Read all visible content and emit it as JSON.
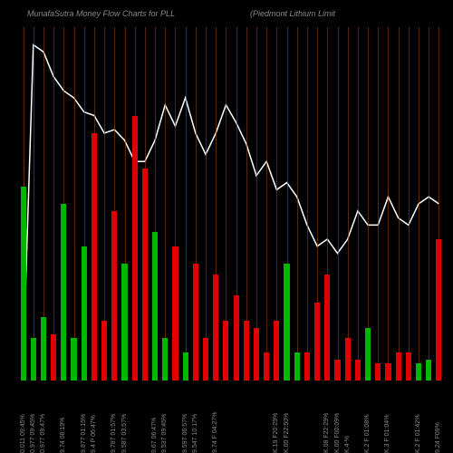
{
  "title_left": "MunafaSutra  Money Flow  Charts for PLL",
  "title_right": "(Piedmont Lithium Limit",
  "chart": {
    "type": "bar+line",
    "background_color": "#000000",
    "grid_color": "#8b4513",
    "line_color": "#ffffff",
    "line_width": 1.5,
    "bar_width_ratio": 0.55,
    "colors": {
      "up": "#00b800",
      "down": "#e00000"
    },
    "title_color": "#888888",
    "title_fontsize": 9,
    "label_color": "#888888",
    "label_fontsize": 7,
    "y_bars_max": 100,
    "y_line_min": 0,
    "y_line_max": 100,
    "bars": [
      {
        "v": 55,
        "c": "up",
        "label": "0.011 09:45%"
      },
      {
        "v": 12,
        "c": "up",
        "label": "0.977 09:45%"
      },
      {
        "v": 18,
        "c": "up",
        "label": "0.977 09:47%"
      },
      {
        "v": 13,
        "c": "down",
        "label": ""
      },
      {
        "v": 50,
        "c": "up",
        "label": "9.74 08:19%"
      },
      {
        "v": 12,
        "c": "up",
        "label": ""
      },
      {
        "v": 38,
        "c": "up",
        "label": "9.877 01:15%"
      },
      {
        "v": 70,
        "c": "down",
        "label": "9.4 P 06:47%"
      },
      {
        "v": 17,
        "c": "down",
        "label": ""
      },
      {
        "v": 48,
        "c": "down",
        "label": "9.787 01:57%"
      },
      {
        "v": 33,
        "c": "up",
        "label": "9.587 03:57%"
      },
      {
        "v": 75,
        "c": "down",
        "label": ""
      },
      {
        "v": 60,
        "c": "down",
        "label": ""
      },
      {
        "v": 42,
        "c": "up",
        "label": "9.67 06:47%"
      },
      {
        "v": 12,
        "c": "up",
        "label": "9.537 09:45%"
      },
      {
        "v": 38,
        "c": "down",
        "label": ""
      },
      {
        "v": 8,
        "c": "up",
        "label": "9.597 06:57%"
      },
      {
        "v": 33,
        "c": "down",
        "label": "9.547 10:17%"
      },
      {
        "v": 12,
        "c": "down",
        "label": ""
      },
      {
        "v": 30,
        "c": "down",
        "label": "9.74 F 04:27%"
      },
      {
        "v": 17,
        "c": "down",
        "label": ""
      },
      {
        "v": 24,
        "c": "down",
        "label": ""
      },
      {
        "v": 17,
        "c": "down",
        "label": ""
      },
      {
        "v": 15,
        "c": "down",
        "label": ""
      },
      {
        "v": 8,
        "c": "down",
        "label": ""
      },
      {
        "v": 17,
        "c": "down",
        "label": "K.19 F20:29%"
      },
      {
        "v": 33,
        "c": "up",
        "label": "K.00 F22:50%"
      },
      {
        "v": 8,
        "c": "up",
        "label": ""
      },
      {
        "v": 8,
        "c": "down",
        "label": ""
      },
      {
        "v": 22,
        "c": "down",
        "label": ""
      },
      {
        "v": 30,
        "c": "down",
        "label": "K.08 F22:29%"
      },
      {
        "v": 6,
        "c": "down",
        "label": "K.00 F00:09%"
      },
      {
        "v": 12,
        "c": "down",
        "label": "K.4-%"
      },
      {
        "v": 6,
        "c": "down",
        "label": ""
      },
      {
        "v": 15,
        "c": "up",
        "label": "K.2 F 01:08%"
      },
      {
        "v": 5,
        "c": "down",
        "label": ""
      },
      {
        "v": 5,
        "c": "down",
        "label": "K.3 F 01:04%"
      },
      {
        "v": 8,
        "c": "down",
        "label": ""
      },
      {
        "v": 8,
        "c": "down",
        "label": ""
      },
      {
        "v": 5,
        "c": "up",
        "label": "K.2 F 01:42%"
      },
      {
        "v": 6,
        "c": "up",
        "label": ""
      },
      {
        "v": 40,
        "c": "down",
        "label": "9.24 F09%"
      }
    ],
    "line": [
      5,
      95,
      93,
      86,
      82,
      80,
      76,
      75,
      70,
      71,
      68,
      62,
      62,
      68,
      78,
      72,
      80,
      70,
      64,
      70,
      78,
      73,
      67,
      58,
      62,
      54,
      56,
      52,
      44,
      38,
      40,
      36,
      40,
      48,
      44,
      44,
      52,
      46,
      44,
      50,
      52,
      50
    ]
  }
}
